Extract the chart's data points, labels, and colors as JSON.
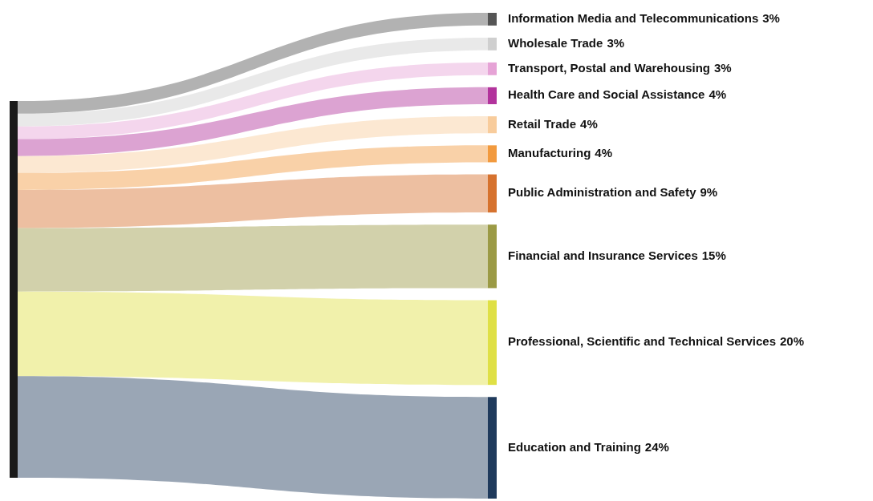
{
  "chart_data": {
    "type": "other",
    "categories": [
      "Information Media and Telecommunications",
      "Wholesale Trade",
      "Transport, Postal and Warehousing",
      "Health Care and Social Assistance",
      "Retail Trade",
      "Manufacturing",
      "Public Administration and Safety",
      "Financial and Insurance Services",
      "Professional, Scientific and Technical Services",
      "Education and Training"
    ],
    "values": [
      3,
      3,
      3,
      4,
      4,
      4,
      9,
      15,
      20,
      24
    ],
    "value_labels": [
      "3%",
      "3%",
      "3%",
      "4%",
      "4%",
      "4%",
      "9%",
      "15%",
      "20%",
      "24%"
    ],
    "colors": [
      "#555555",
      "#cfcfcf",
      "#e6a3d6",
      "#b2339c",
      "#f8cc9c",
      "#f29a3e",
      "#d6722e",
      "#9b9a45",
      "#dfe045",
      "#1f3a5c"
    ]
  }
}
